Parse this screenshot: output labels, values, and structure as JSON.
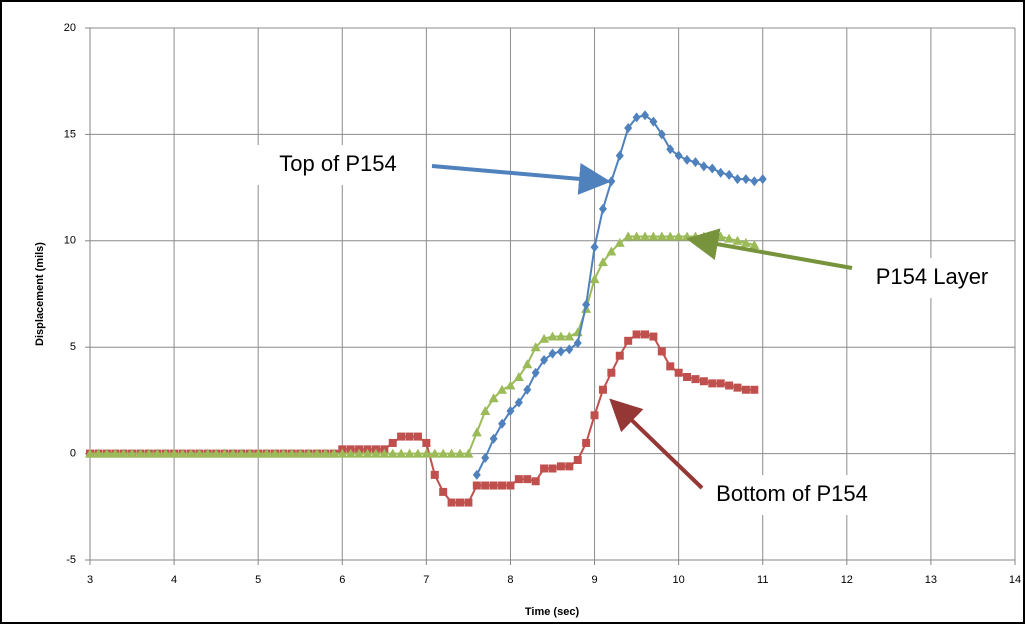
{
  "chart_data": {
    "type": "line",
    "x_label": "Time (sec)",
    "y_label": "Displacement (mils)",
    "x": [
      3.0,
      3.1,
      3.2,
      3.3,
      3.4,
      3.5,
      3.6,
      3.7,
      3.8,
      3.9,
      4.0,
      4.1,
      4.2,
      4.3,
      4.4,
      4.5,
      4.6,
      4.7,
      4.8,
      4.9,
      5.0,
      5.1,
      5.2,
      5.3,
      5.4,
      5.5,
      5.6,
      5.7,
      5.8,
      5.9,
      6.0,
      6.1,
      6.2,
      6.3,
      6.4,
      6.5,
      6.6,
      6.7,
      6.8,
      6.9,
      7.0,
      7.1,
      7.2,
      7.3,
      7.4,
      7.5,
      7.6,
      7.7,
      7.8,
      7.9,
      8.0,
      8.1,
      8.2,
      8.3,
      8.4,
      8.5,
      8.6,
      8.7,
      8.8,
      8.9,
      9.0,
      9.1,
      9.2,
      9.3,
      9.4,
      9.5,
      9.6,
      9.7,
      9.8,
      9.9,
      10.0,
      10.1,
      10.2,
      10.3,
      10.4,
      10.5,
      10.6,
      10.7,
      10.8,
      10.9,
      11.0
    ],
    "series": [
      {
        "name": "Bottom of P154",
        "color": "#c0504d",
        "marker": "square",
        "values": [
          0,
          0,
          0,
          0,
          0,
          0,
          0,
          0,
          0,
          0,
          0,
          0,
          0,
          0,
          0,
          0,
          0,
          0,
          0,
          0,
          0,
          0,
          0,
          0,
          0,
          0,
          0,
          0,
          0,
          0,
          0.2,
          0.2,
          0.2,
          0.2,
          0.2,
          0.2,
          0.5,
          0.8,
          0.8,
          0.8,
          0.5,
          -1,
          -1.8,
          -2.3,
          -2.3,
          -2.3,
          -1.5,
          -1.5,
          -1.5,
          -1.5,
          -1.5,
          -1.2,
          -1.2,
          -1.3,
          -0.7,
          -0.7,
          -0.6,
          -0.6,
          -0.3,
          0.5,
          1.8,
          3,
          3.8,
          4.6,
          5.3,
          5.6,
          5.6,
          5.5,
          4.8,
          4.1,
          3.8,
          3.6,
          3.5,
          3.4,
          3.3,
          3.3,
          3.2,
          3.1,
          3.0,
          3.0,
          null
        ]
      },
      {
        "name": "P154 Layer",
        "color": "#9bbb59",
        "marker": "triangle",
        "values": [
          0,
          0,
          0,
          0,
          0,
          0,
          0,
          0,
          0,
          0,
          0,
          0,
          0,
          0,
          0,
          0,
          0,
          0,
          0,
          0,
          0,
          0,
          0,
          0,
          0,
          0,
          0,
          0,
          0,
          0,
          0,
          0,
          0,
          0,
          0,
          0,
          0,
          0,
          0,
          0,
          0,
          0,
          0,
          0,
          0,
          0,
          1,
          2,
          2.6,
          3,
          3.2,
          3.6,
          4.2,
          5,
          5.4,
          5.5,
          5.5,
          5.5,
          5.7,
          6.8,
          8.2,
          9,
          9.5,
          9.9,
          10.2,
          10.2,
          10.2,
          10.2,
          10.2,
          10.2,
          10.2,
          10.2,
          10.2,
          10.2,
          10.2,
          10.2,
          10.1,
          10,
          9.9,
          9.8,
          null
        ]
      },
      {
        "name": "Top of P154",
        "color": "#4f81bd",
        "marker": "diamond",
        "values": [
          null,
          null,
          null,
          null,
          null,
          null,
          null,
          null,
          null,
          null,
          null,
          null,
          null,
          null,
          null,
          null,
          null,
          null,
          null,
          null,
          null,
          null,
          null,
          null,
          null,
          null,
          null,
          null,
          null,
          null,
          null,
          null,
          null,
          null,
          null,
          null,
          null,
          null,
          null,
          null,
          null,
          null,
          null,
          null,
          null,
          null,
          -1,
          -0.2,
          0.7,
          1.4,
          2,
          2.4,
          3,
          3.8,
          4.4,
          4.7,
          4.8,
          4.9,
          5.2,
          7,
          9.7,
          11.5,
          12.8,
          14,
          15.3,
          15.8,
          15.9,
          15.6,
          15,
          14.3,
          14,
          13.8,
          13.7,
          13.5,
          13.4,
          13.2,
          13.1,
          12.9,
          12.9,
          12.8,
          12.9
        ]
      }
    ],
    "xlim": [
      3,
      14
    ],
    "xticks": [
      3,
      4,
      5,
      6,
      7,
      8,
      9,
      10,
      11,
      12,
      13,
      14
    ],
    "ylim": [
      -5,
      20
    ],
    "yticks": [
      -5,
      0,
      5,
      10,
      15,
      20
    ],
    "grid": true,
    "annotations": [
      "Top of P154",
      "P154 Layer",
      "Bottom of P154"
    ]
  }
}
